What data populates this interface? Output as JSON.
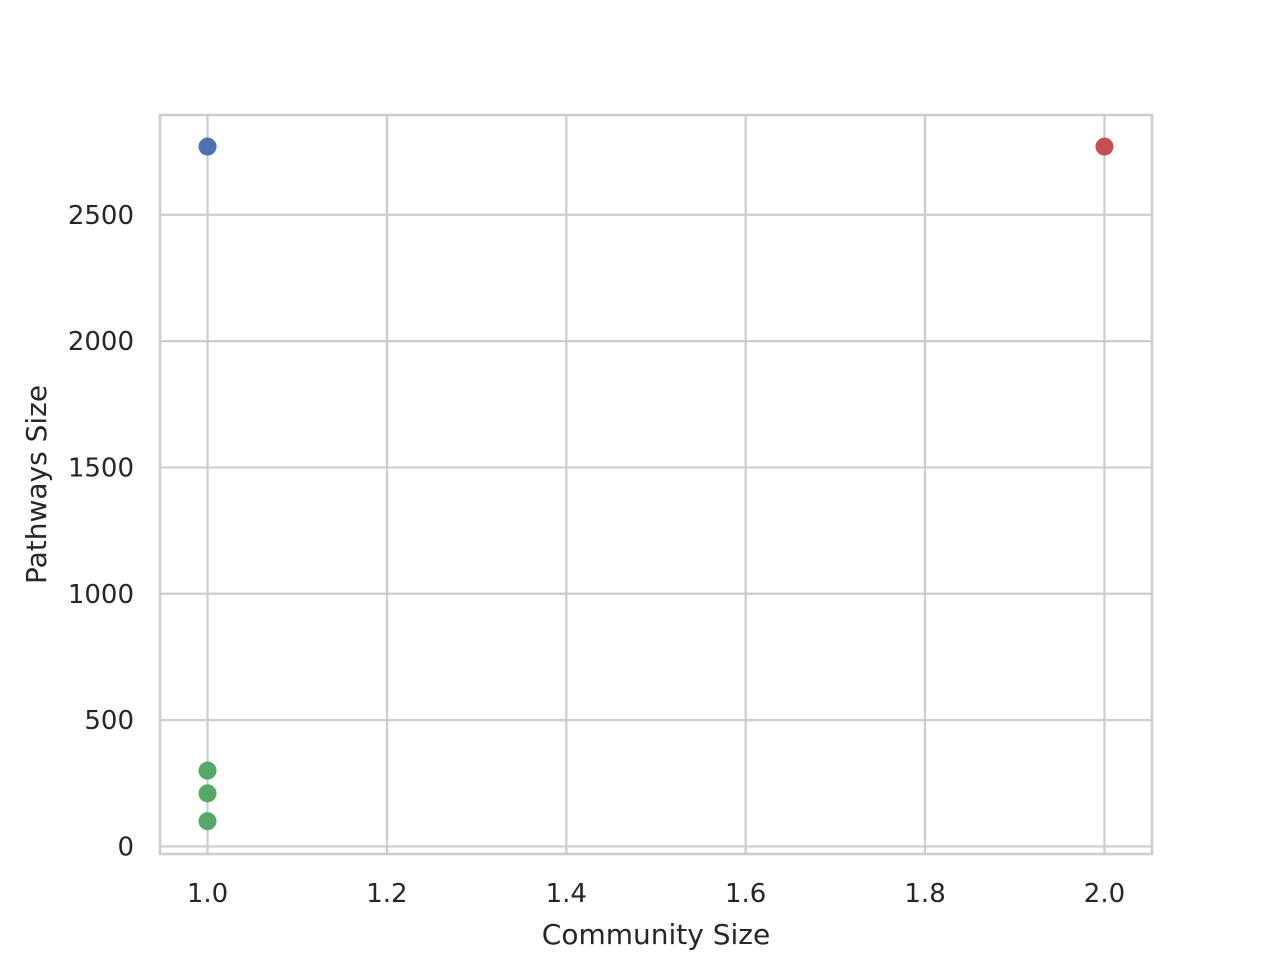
{
  "chart_data": {
    "type": "scatter",
    "title": "",
    "xlabel": "Community Size",
    "ylabel": "Pathways Size",
    "xlim": [
      0.947,
      2.053
    ],
    "ylim": [
      -30,
      2895
    ],
    "grid": true,
    "x_ticks": [
      1.0,
      1.2,
      1.4,
      1.6,
      1.8,
      2.0
    ],
    "x_tick_labels": [
      "1.0",
      "1.2",
      "1.4",
      "1.6",
      "1.8",
      "2.0"
    ],
    "y_ticks": [
      0,
      500,
      1000,
      1500,
      2000,
      2500
    ],
    "y_tick_labels": [
      "0",
      "500",
      "1000",
      "1500",
      "2000",
      "2500"
    ],
    "points": [
      {
        "x": 1.0,
        "y": 2770,
        "color": "#4c72b0"
      },
      {
        "x": 2.0,
        "y": 2770,
        "color": "#c44e52"
      },
      {
        "x": 1.0,
        "y": 300,
        "color": "#55a868"
      },
      {
        "x": 1.0,
        "y": 210,
        "color": "#55a868"
      },
      {
        "x": 1.0,
        "y": 100,
        "color": "#55a868"
      }
    ]
  }
}
